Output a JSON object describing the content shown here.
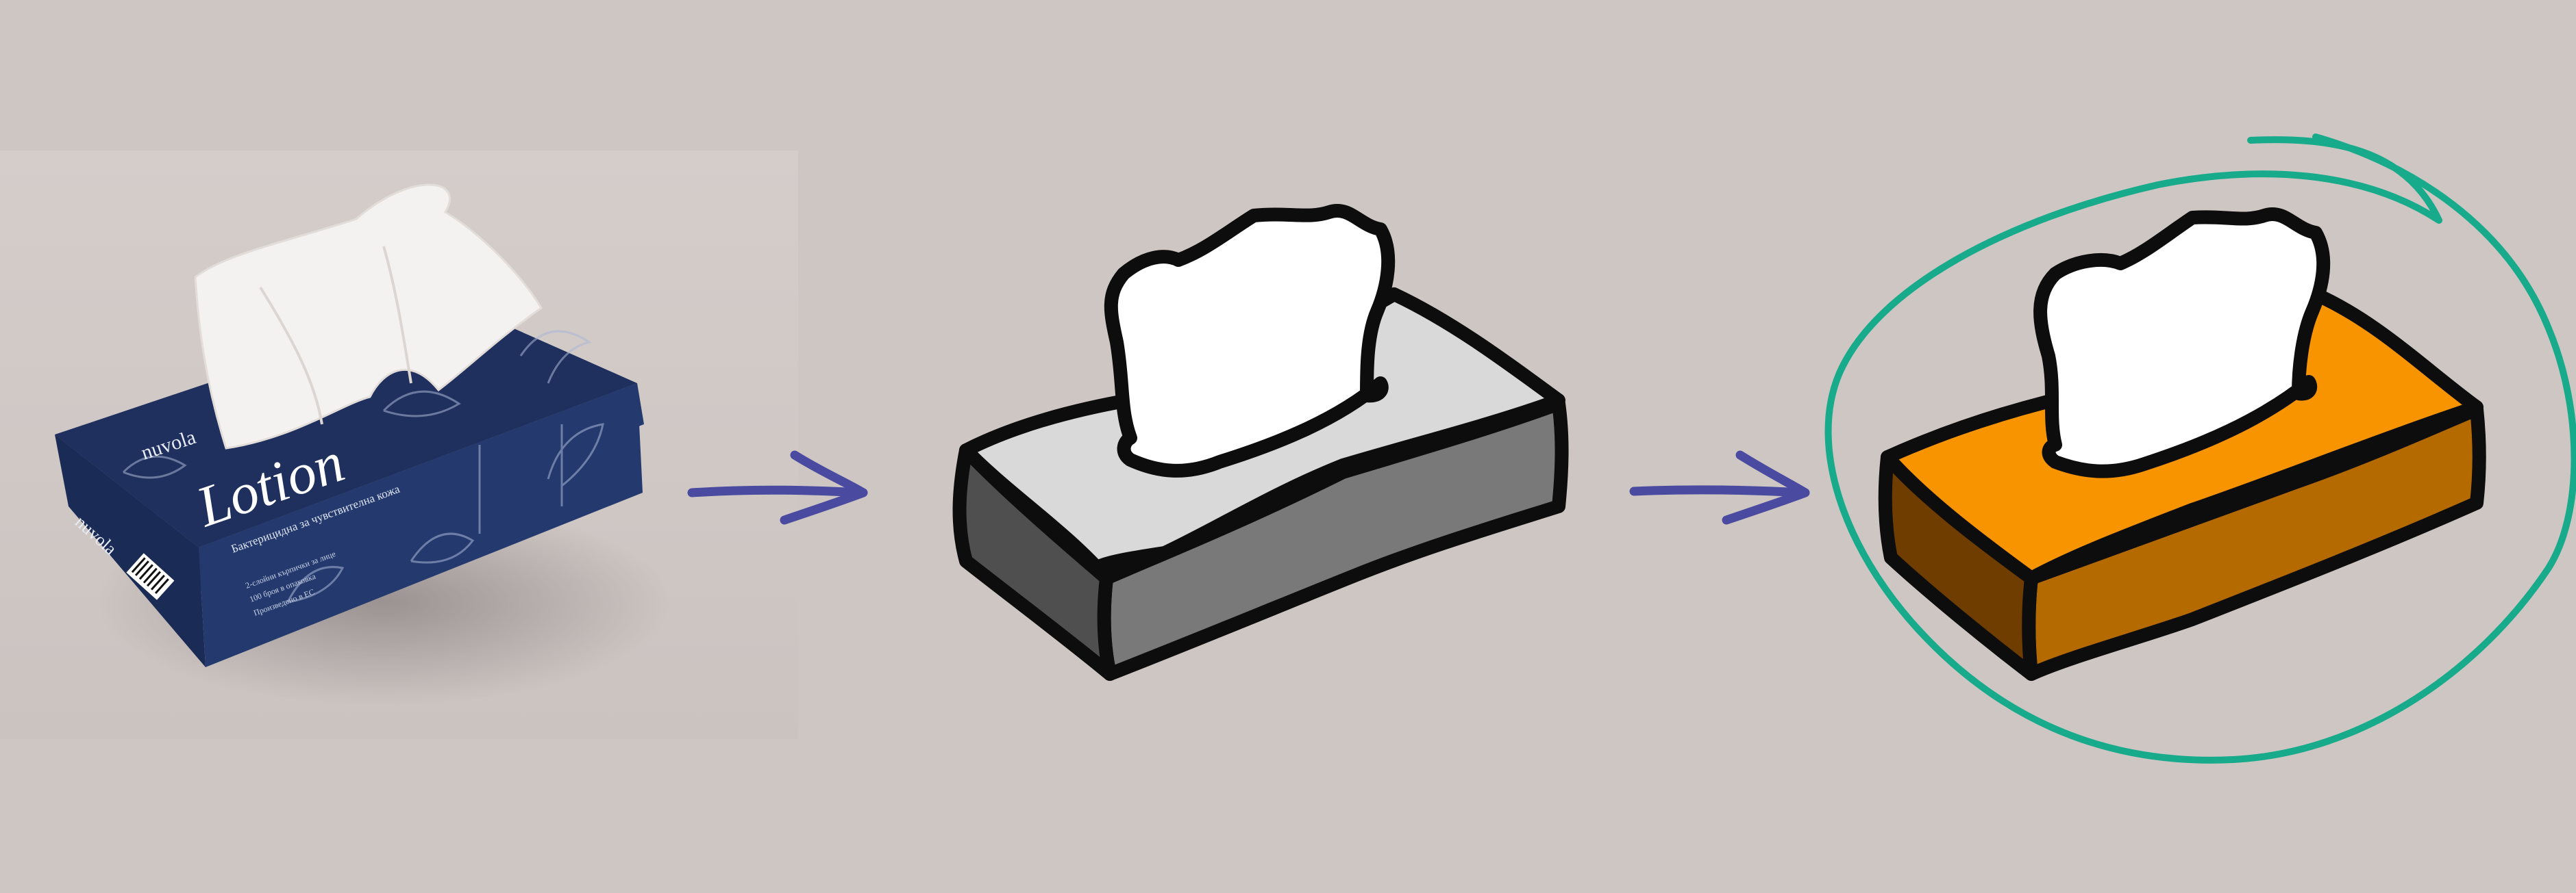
{
  "colors": {
    "background": "#cec6c3",
    "arrow": "#4a4aa0",
    "outline": "#0d0d0d",
    "tissue": "#ffffff",
    "gray_top": "#d9d9d9",
    "gray_front": "#797979",
    "gray_side": "#4f4f4f",
    "orange_top": "#f79400",
    "orange_front": "#b56a00",
    "orange_side": "#6f3d00",
    "highlight_circle": "#17ab8c",
    "photo_box_top": "#20305e",
    "photo_box_front": "#243a6e",
    "photo_box_side": "#1a2b55"
  },
  "photo": {
    "brand_top": "nuvola",
    "brand_side": "nuvola",
    "product_title": "Lotion",
    "tagline": "Бактерицидна за чувствителна кожа",
    "small_print": [
      "2-слойни кърпички за лице",
      "100 броя в опаковка",
      "Произведено в ЕС"
    ]
  },
  "steps": [
    {
      "label": "photo-tissue-box"
    },
    {
      "label": "gray-line-drawing"
    },
    {
      "label": "orange-colored-drawing"
    }
  ],
  "icons": [
    "arrow-right-icon",
    "arrow-right-icon",
    "highlight-circle-icon"
  ]
}
